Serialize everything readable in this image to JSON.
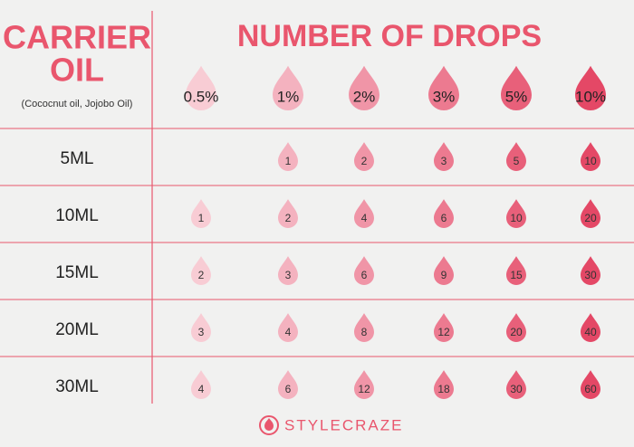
{
  "header": {
    "title_lines": [
      "CARRIER",
      "OIL"
    ],
    "subtitle": "(Cococnut oil, Jojobo Oil)",
    "columns_title": "NUMBER OF DROPS"
  },
  "table": {
    "columns": [
      "0.5%",
      "1%",
      "2%",
      "3%",
      "5%",
      "10%"
    ],
    "rows": [
      {
        "label": "5ML",
        "values": [
          null,
          1,
          2,
          3,
          5,
          10
        ]
      },
      {
        "label": "10ML",
        "values": [
          1,
          2,
          4,
          6,
          10,
          20
        ]
      },
      {
        "label": "15ML",
        "values": [
          2,
          3,
          6,
          9,
          15,
          30
        ]
      },
      {
        "label": "20ML",
        "values": [
          3,
          4,
          8,
          12,
          20,
          40
        ]
      },
      {
        "label": "30ML",
        "values": [
          4,
          6,
          12,
          18,
          30,
          60
        ]
      }
    ]
  },
  "footer": {
    "brand": "STYLECRAZE"
  }
}
